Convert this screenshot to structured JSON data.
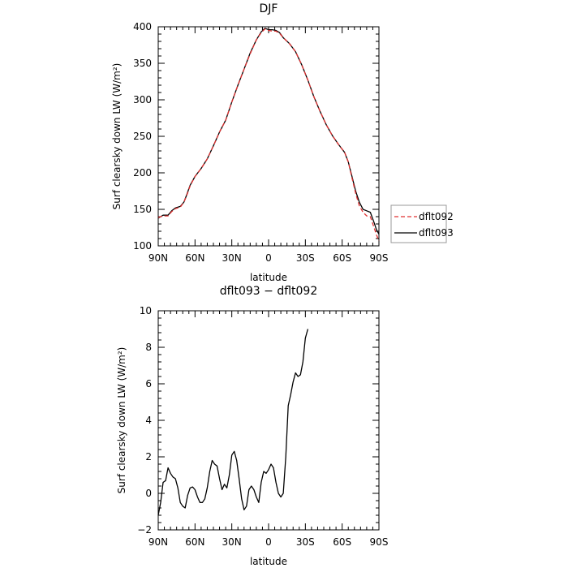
{
  "chart_data": [
    {
      "type": "line",
      "title": "DJF",
      "xlabel": "latitude",
      "ylabel": "Surf clearsky down LW (W/m²)",
      "x_ticks": [
        90,
        60,
        30,
        0,
        -30,
        -60,
        -90
      ],
      "x_tick_labels": [
        "90N",
        "60N",
        "30N",
        "0",
        "30S",
        "60S",
        "90S"
      ],
      "xlim": [
        90,
        -90
      ],
      "y_ticks": [
        100,
        150,
        200,
        250,
        300,
        350,
        400
      ],
      "y_tick_labels": [
        "100",
        "150",
        "200",
        "250",
        "300",
        "350",
        "400"
      ],
      "ylim": [
        100,
        400
      ],
      "legend_position": "outside-right",
      "series": [
        {
          "name": "dflt092",
          "color": "#e03030",
          "dash": "dashed",
          "points": [
            [
              90,
              139
            ],
            [
              86,
              141
            ],
            [
              82,
              141
            ],
            [
              79,
              147
            ],
            [
              76,
              151
            ],
            [
              72,
              153
            ],
            [
              69,
              160
            ],
            [
              67,
              168
            ],
            [
              64,
              182
            ],
            [
              60,
              195
            ],
            [
              55,
              206
            ],
            [
              50,
              219
            ],
            [
              45,
              237
            ],
            [
              40,
              256
            ],
            [
              35,
              272
            ],
            [
              30,
              297
            ],
            [
              25,
              320
            ],
            [
              20,
              342
            ],
            [
              15,
              363
            ],
            [
              10,
              382
            ],
            [
              6,
              392
            ],
            [
              3,
              397
            ],
            [
              0,
              395
            ],
            [
              -3,
              394
            ],
            [
              -6,
              394
            ],
            [
              -9,
              391
            ],
            [
              -12,
              385
            ],
            [
              -17,
              377
            ],
            [
              -22,
              366
            ],
            [
              -27,
              348
            ],
            [
              -32,
              327
            ],
            [
              -37,
              304
            ],
            [
              -42,
              284
            ],
            [
              -47,
              266
            ],
            [
              -52,
              251
            ],
            [
              -57,
              239
            ],
            [
              -62,
              228
            ],
            [
              -65,
              215
            ],
            [
              -68,
              193
            ],
            [
              -71,
              172
            ],
            [
              -74,
              155
            ],
            [
              -77,
              146
            ],
            [
              -80,
              141
            ],
            [
              -83,
              140
            ],
            [
              -86,
              125
            ],
            [
              -88,
              115
            ],
            [
              -90,
              107
            ]
          ]
        },
        {
          "name": "dflt093",
          "color": "#000000",
          "dash": "solid",
          "points": [
            [
              90,
              138
            ],
            [
              86,
              142
            ],
            [
              82,
              142
            ],
            [
              79,
              148
            ],
            [
              76,
              152
            ],
            [
              72,
              154
            ],
            [
              69,
              160
            ],
            [
              67,
              169
            ],
            [
              64,
              183
            ],
            [
              60,
              195
            ],
            [
              55,
              206
            ],
            [
              50,
              219
            ],
            [
              45,
              237
            ],
            [
              40,
              256
            ],
            [
              35,
              272
            ],
            [
              30,
              297
            ],
            [
              25,
              320
            ],
            [
              20,
              342
            ],
            [
              15,
              364
            ],
            [
              10,
              382
            ],
            [
              6,
              393
            ],
            [
              3,
              398
            ],
            [
              0,
              396
            ],
            [
              -3,
              396
            ],
            [
              -6,
              395
            ],
            [
              -9,
              392
            ],
            [
              -12,
              385
            ],
            [
              -17,
              377
            ],
            [
              -22,
              366
            ],
            [
              -27,
              348
            ],
            [
              -32,
              327
            ],
            [
              -37,
              304
            ],
            [
              -42,
              284
            ],
            [
              -47,
              266
            ],
            [
              -52,
              251
            ],
            [
              -57,
              239
            ],
            [
              -62,
              228
            ],
            [
              -65,
              215
            ],
            [
              -68,
              195
            ],
            [
              -71,
              175
            ],
            [
              -74,
              160
            ],
            [
              -77,
              150
            ],
            [
              -80,
              148
            ],
            [
              -83,
              146
            ],
            [
              -86,
              132
            ],
            [
              -88,
              122
            ],
            [
              -90,
              116
            ]
          ]
        }
      ]
    },
    {
      "type": "line",
      "title": "dflt093 − dflt092",
      "xlabel": "latitude",
      "ylabel": "Surf clearsky down LW (W/m²)",
      "x_ticks": [
        90,
        60,
        30,
        0,
        -30,
        -60,
        -90
      ],
      "x_tick_labels": [
        "90N",
        "60N",
        "30N",
        "0",
        "30S",
        "60S",
        "90S"
      ],
      "xlim": [
        90,
        -90
      ],
      "y_ticks": [
        -2,
        0,
        2,
        4,
        6,
        8,
        10
      ],
      "y_tick_labels": [
        "−2",
        "0",
        "2",
        "4",
        "6",
        "8",
        "10"
      ],
      "ylim": [
        -2,
        10
      ],
      "series": [
        {
          "color": "#000000",
          "dash": "solid",
          "points": [
            [
              90,
              -1.2
            ],
            [
              88,
              -0.5
            ],
            [
              86,
              0.6
            ],
            [
              84,
              0.7
            ],
            [
              82,
              1.4
            ],
            [
              80,
              1.1
            ],
            [
              78,
              0.9
            ],
            [
              76,
              0.8
            ],
            [
              74,
              0.3
            ],
            [
              72,
              -0.5
            ],
            [
              70,
              -0.7
            ],
            [
              68,
              -0.8
            ],
            [
              66,
              -0.1
            ],
            [
              64,
              0.3
            ],
            [
              62,
              0.35
            ],
            [
              60,
              0.2
            ],
            [
              58,
              -0.2
            ],
            [
              56,
              -0.5
            ],
            [
              54,
              -0.5
            ],
            [
              52,
              -0.3
            ],
            [
              50,
              0.3
            ],
            [
              48,
              1.2
            ],
            [
              46,
              1.8
            ],
            [
              44,
              1.6
            ],
            [
              42,
              1.5
            ],
            [
              40,
              0.8
            ],
            [
              38,
              0.2
            ],
            [
              36,
              0.5
            ],
            [
              34,
              0.3
            ],
            [
              32,
              1.0
            ],
            [
              30,
              2.1
            ],
            [
              28,
              2.3
            ],
            [
              26,
              1.8
            ],
            [
              24,
              0.8
            ],
            [
              22,
              -0.3
            ],
            [
              20,
              -0.9
            ],
            [
              18,
              -0.7
            ],
            [
              16,
              0.2
            ],
            [
              14,
              0.4
            ],
            [
              12,
              0.2
            ],
            [
              10,
              -0.2
            ],
            [
              8,
              -0.5
            ],
            [
              6,
              0.6
            ],
            [
              4,
              1.2
            ],
            [
              2,
              1.1
            ],
            [
              0,
              1.3
            ],
            [
              -2,
              1.6
            ],
            [
              -4,
              1.4
            ],
            [
              -6,
              0.6
            ],
            [
              -8,
              0.0
            ],
            [
              -10,
              -0.2
            ],
            [
              -12,
              0.0
            ],
            [
              -14,
              2.0
            ],
            [
              -16,
              4.8
            ],
            [
              -18,
              5.4
            ],
            [
              -20,
              6.1
            ],
            [
              -22,
              6.6
            ],
            [
              -24,
              6.4
            ],
            [
              -26,
              6.5
            ],
            [
              -28,
              7.2
            ],
            [
              -30,
              8.5
            ],
            [
              -32,
              9.0
            ]
          ]
        }
      ]
    }
  ]
}
